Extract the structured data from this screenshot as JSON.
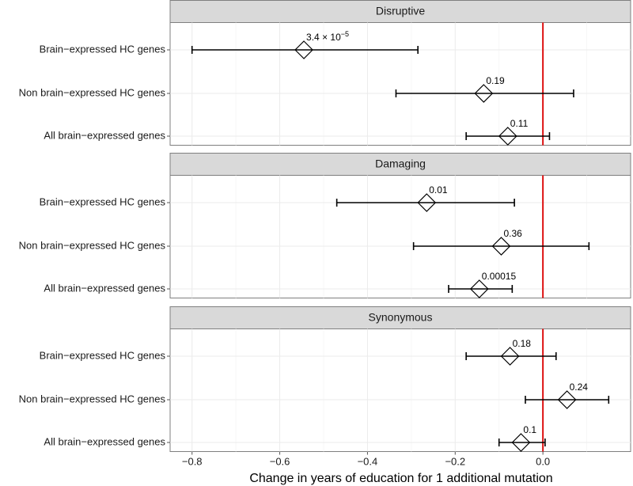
{
  "chart_data": {
    "type": "forest",
    "xlabel": "Change in years of education for 1 additional mutation",
    "xlim": [
      -0.85,
      0.2
    ],
    "xticks": [
      {
        "value": -0.8,
        "label": "−0.8"
      },
      {
        "value": -0.6,
        "label": "−0.6"
      },
      {
        "value": -0.4,
        "label": "−0.4"
      },
      {
        "value": -0.2,
        "label": "−0.2"
      },
      {
        "value": 0.0,
        "label": "0.0"
      }
    ],
    "reference_line": 0.0,
    "reference_color": "#dd1111",
    "panels": [
      {
        "title": "Disruptive",
        "rows": [
          {
            "label": "Brain−expressed HC genes",
            "estimate": -0.545,
            "lower": -0.8,
            "upper": -0.285,
            "p_label": "3.4 × 10",
            "p_exponent": "−5"
          },
          {
            "label": "Non brain−expressed HC genes",
            "estimate": -0.135,
            "lower": -0.335,
            "upper": 0.07,
            "p_label": "0.19"
          },
          {
            "label": "All brain−expressed genes",
            "estimate": -0.08,
            "lower": -0.175,
            "upper": 0.015,
            "p_label": "0.11"
          }
        ]
      },
      {
        "title": "Damaging",
        "rows": [
          {
            "label": "Brain−expressed HC genes",
            "estimate": -0.265,
            "lower": -0.47,
            "upper": -0.065,
            "p_label": "0.01"
          },
          {
            "label": "Non brain−expressed HC genes",
            "estimate": -0.095,
            "lower": -0.295,
            "upper": 0.105,
            "p_label": "0.36"
          },
          {
            "label": "All brain−expressed genes",
            "estimate": -0.145,
            "lower": -0.215,
            "upper": -0.07,
            "p_label": "0.00015"
          }
        ]
      },
      {
        "title": "Synonymous",
        "rows": [
          {
            "label": "Brain−expressed HC genes",
            "estimate": -0.075,
            "lower": -0.175,
            "upper": 0.03,
            "p_label": "0.18"
          },
          {
            "label": "Non brain−expressed HC genes",
            "estimate": 0.055,
            "lower": -0.04,
            "upper": 0.15,
            "p_label": "0.24"
          },
          {
            "label": "All brain−expressed genes",
            "estimate": -0.05,
            "lower": -0.1,
            "upper": 0.005,
            "p_label": "0.1"
          }
        ]
      }
    ]
  }
}
